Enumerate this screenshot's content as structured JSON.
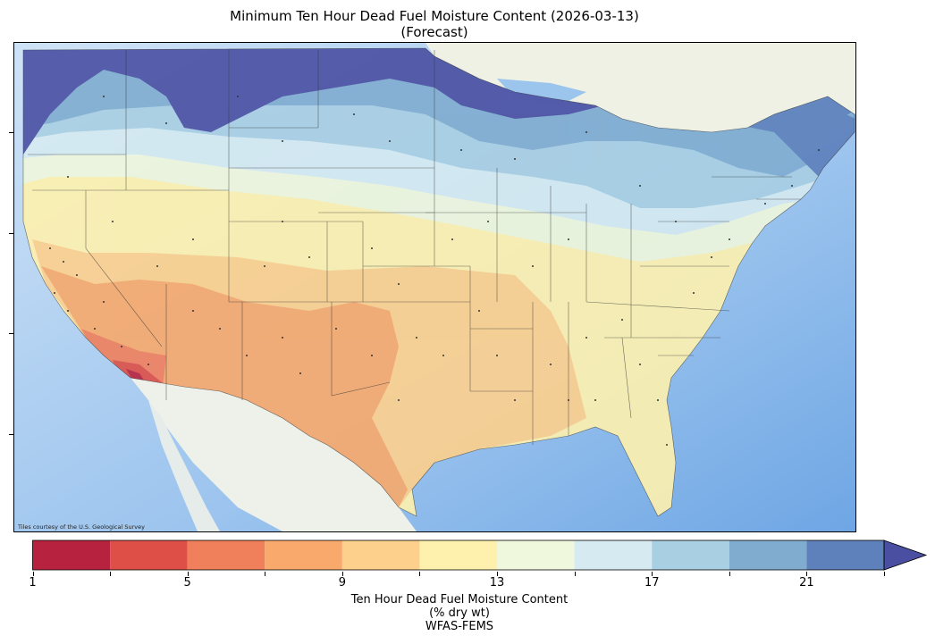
{
  "title_line1": "Minimum Ten Hour Dead Fuel Moisture Content (2026-03-13)",
  "title_line2": "(Forecast)",
  "attribution": "Tiles courtesy of the U.S. Geological Survey",
  "colorbar": {
    "tick_labels": [
      "1",
      "5",
      "9",
      "13",
      "17",
      "21"
    ],
    "tick_values": [
      1,
      5,
      9,
      13,
      17,
      21
    ],
    "bin_edges": [
      1,
      3,
      5,
      7,
      9,
      11,
      13,
      15,
      17,
      19,
      21,
      23
    ],
    "colors": [
      "#b7233f",
      "#dd4f47",
      "#f07f5c",
      "#f8a96b",
      "#fdd08c",
      "#fef1ae",
      "#eff7dc",
      "#d5eaf1",
      "#a9cfe3",
      "#80acd0",
      "#5e80bb",
      "#4a4fa2"
    ],
    "extend": "max",
    "label_line1": "Ten Hour Dead Fuel Moisture Content",
    "label_line2": "(% dry wt)",
    "label_line3": "WFAS-FEMS"
  },
  "map": {
    "region": "Contiguous United States",
    "basemap": "USGS topo tiles",
    "ocean_color": "#8ab8ea",
    "land_outside_color": "#eef0ea"
  }
}
